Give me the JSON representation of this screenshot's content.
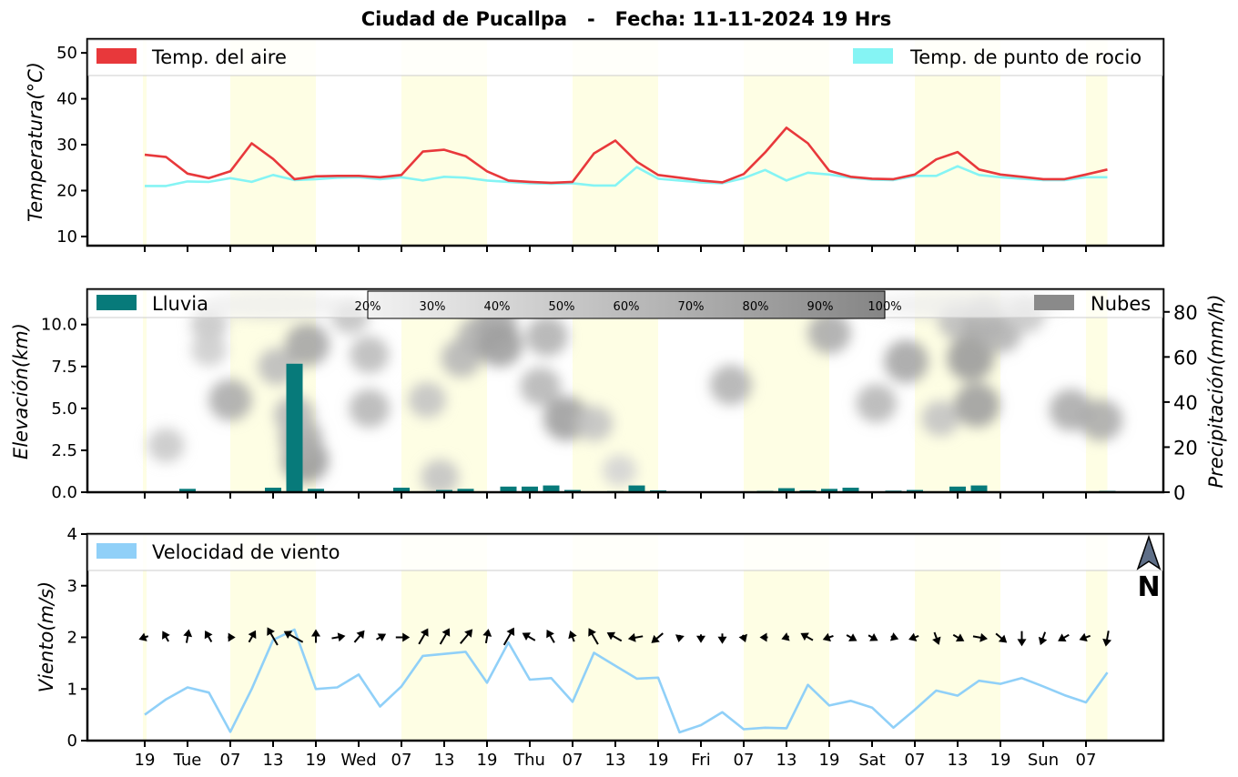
{
  "title": "Ciudad de Pucallpa   -   Fecha: 11-11-2024 19 Hrs",
  "x_tick_labels": [
    "19",
    "Tue",
    "07",
    "13",
    "19",
    "Wed",
    "07",
    "13",
    "19",
    "Thu",
    "07",
    "13",
    "19",
    "Fri",
    "07",
    "13",
    "19",
    "Sat",
    "07",
    "13",
    "19",
    "Sun",
    "07"
  ],
  "colors": {
    "air": "#e8383b",
    "dew": "#85f4f4",
    "rain": "#077a7a",
    "clouds": "#8a8a8a",
    "wind": "#90d0f8",
    "day": "#fefee4"
  },
  "chart_data": [
    {
      "type": "line",
      "panel": "temperature",
      "ylabel": "Temperatura(°C)",
      "ylim": [
        8,
        53
      ],
      "yticks": [
        10,
        20,
        30,
        40,
        50
      ],
      "legend": [
        "Temp. del aire",
        "Temp. de punto de rocio"
      ],
      "series": [
        {
          "name": "Temp. del aire",
          "values": [
            27.8,
            27.3,
            23.7,
            22.7,
            24.2,
            30.3,
            26.9,
            22.5,
            23.1,
            23.2,
            23.2,
            22.9,
            23.4,
            28.5,
            28.9,
            27.5,
            24.2,
            22.2,
            21.9,
            21.7,
            21.9,
            28.1,
            30.9,
            26.3,
            23.4,
            22.8,
            22.2,
            21.8,
            23.6,
            28.3,
            33.7,
            30.3,
            24.3,
            23.0,
            22.6,
            22.5,
            23.5,
            26.8,
            28.4,
            24.6,
            23.5,
            23.0,
            22.5,
            22.5,
            23.5,
            24.6
          ]
        },
        {
          "name": "Temp. de punto de rocio",
          "values": [
            21.0,
            21.0,
            22.0,
            21.9,
            22.7,
            21.9,
            23.4,
            22.3,
            22.5,
            22.8,
            22.9,
            22.5,
            22.9,
            22.2,
            23.0,
            22.8,
            22.2,
            21.9,
            21.6,
            21.5,
            21.6,
            21.1,
            21.1,
            25.1,
            22.6,
            22.2,
            21.8,
            21.6,
            22.7,
            24.5,
            22.2,
            23.9,
            23.5,
            22.8,
            22.4,
            22.3,
            23.2,
            23.2,
            25.3,
            23.4,
            22.9,
            22.6,
            22.3,
            22.3,
            22.9,
            22.9
          ]
        }
      ]
    },
    {
      "type": "bar",
      "panel": "precipitation",
      "ylabel": "Elevación(km)",
      "ylabel_right": "Precipitación(mm/h)",
      "ylim": [
        0,
        12.1
      ],
      "yticks": [
        0.0,
        2.5,
        5.0,
        7.5,
        10.0
      ],
      "ylim_right": [
        0,
        90
      ],
      "yticks_right": [
        0,
        20,
        40,
        60,
        80
      ],
      "legend": [
        "Lluvia",
        "Nubes"
      ],
      "colorbar_labels": [
        "20%",
        "30%",
        "40%",
        "50%",
        "60%",
        "70%",
        "80%",
        "90%",
        "100%"
      ],
      "series": [
        {
          "name": "Lluvia",
          "values": [
            0,
            0,
            1.5,
            0.3,
            0,
            0,
            2.0,
            57,
            1.5,
            0,
            0,
            0.2,
            2.0,
            0,
            1.0,
            1.5,
            0,
            2.5,
            2.5,
            3.0,
            1.0,
            0,
            0.5,
            3.0,
            0.8,
            0,
            0,
            0,
            0,
            0.6,
            1.8,
            0.8,
            1.5,
            2.0,
            0,
            0.7,
            1.0,
            0,
            2.5,
            3.0,
            0,
            0,
            0,
            0,
            0,
            0.6
          ]
        }
      ],
      "clouds": [
        {
          "t": 7.5,
          "z": 1.9,
          "level": 0.7
        },
        {
          "t": 7.3,
          "z": 3.2,
          "level": 0.55
        },
        {
          "t": 7.0,
          "z": 4.6,
          "level": 0.45
        },
        {
          "t": 6.2,
          "z": 7.5,
          "level": 0.4
        },
        {
          "t": 7.6,
          "z": 8.8,
          "level": 0.6
        },
        {
          "t": 4.0,
          "z": 5.5,
          "level": 0.55
        },
        {
          "t": 3.0,
          "z": 10.0,
          "level": 0.3
        },
        {
          "t": 9.6,
          "z": 10.5,
          "level": 0.35
        },
        {
          "t": 10.5,
          "z": 8.2,
          "level": 0.4
        },
        {
          "t": 10.5,
          "z": 5.0,
          "level": 0.45
        },
        {
          "t": 13.2,
          "z": 5.5,
          "level": 0.35
        },
        {
          "t": 14.8,
          "z": 8.0,
          "level": 0.45
        },
        {
          "t": 15.6,
          "z": 9.3,
          "level": 0.5
        },
        {
          "t": 16.4,
          "z": 10.0,
          "level": 0.55
        },
        {
          "t": 16.6,
          "z": 8.8,
          "level": 0.65
        },
        {
          "t": 18.8,
          "z": 9.3,
          "level": 0.5
        },
        {
          "t": 18.5,
          "z": 6.3,
          "level": 0.45
        },
        {
          "t": 19.7,
          "z": 4.4,
          "level": 0.65
        },
        {
          "t": 21.0,
          "z": 4.1,
          "level": 0.35
        },
        {
          "t": 13.8,
          "z": 0.9,
          "level": 0.35
        },
        {
          "t": 22.2,
          "z": 1.3,
          "level": 0.2
        },
        {
          "t": 27.4,
          "z": 6.4,
          "level": 0.5
        },
        {
          "t": 32.0,
          "z": 9.5,
          "level": 0.55
        },
        {
          "t": 34.2,
          "z": 5.3,
          "level": 0.45
        },
        {
          "t": 35.6,
          "z": 7.8,
          "level": 0.6
        },
        {
          "t": 37.2,
          "z": 4.4,
          "level": 0.35
        },
        {
          "t": 38.0,
          "z": 10.2,
          "level": 0.4
        },
        {
          "t": 38.6,
          "z": 8.0,
          "level": 0.7
        },
        {
          "t": 38.9,
          "z": 5.2,
          "level": 0.65
        },
        {
          "t": 39.2,
          "z": 10.3,
          "level": 0.55
        },
        {
          "t": 40.0,
          "z": 9.5,
          "level": 0.5
        },
        {
          "t": 41.2,
          "z": 10.5,
          "level": 0.3
        },
        {
          "t": 43.3,
          "z": 4.9,
          "level": 0.55
        },
        {
          "t": 44.7,
          "z": 4.3,
          "level": 0.55
        },
        {
          "t": 1.0,
          "z": 2.8,
          "level": 0.3
        },
        {
          "t": 3.0,
          "z": 8.5,
          "level": 0.25
        }
      ]
    },
    {
      "type": "line",
      "panel": "wind",
      "ylabel": "Viento(m/s)",
      "ylim": [
        0,
        4
      ],
      "yticks": [
        0,
        1,
        2,
        3,
        4
      ],
      "legend": [
        "Velocidad de viento"
      ],
      "north_label": "N",
      "series": [
        {
          "name": "Velocidad de viento",
          "values": [
            0.5,
            0.8,
            1.03,
            0.93,
            0.17,
            1.0,
            1.95,
            2.15,
            1.0,
            1.03,
            1.28,
            0.66,
            1.05,
            1.64,
            1.68,
            1.72,
            1.12,
            1.9,
            1.18,
            1.21,
            0.75,
            1.7,
            1.45,
            1.2,
            1.22,
            0.16,
            0.3,
            0.55,
            0.22,
            0.25,
            0.24,
            1.08,
            0.68,
            0.77,
            0.64,
            0.25,
            0.6,
            0.97,
            0.87,
            1.16,
            1.1,
            1.21,
            1.05,
            0.88,
            0.74,
            1.32
          ]
        }
      ],
      "wind_direction_deg": [
        250,
        330,
        10,
        330,
        90,
        30,
        330,
        300,
        0,
        80,
        40,
        60,
        90,
        30,
        30,
        40,
        10,
        30,
        300,
        330,
        340,
        330,
        300,
        260,
        230,
        190,
        180,
        180,
        160,
        270,
        250,
        300,
        250,
        120,
        120,
        110,
        250,
        160,
        120,
        100,
        130,
        180,
        200,
        240,
        250,
        190
      ]
    }
  ]
}
